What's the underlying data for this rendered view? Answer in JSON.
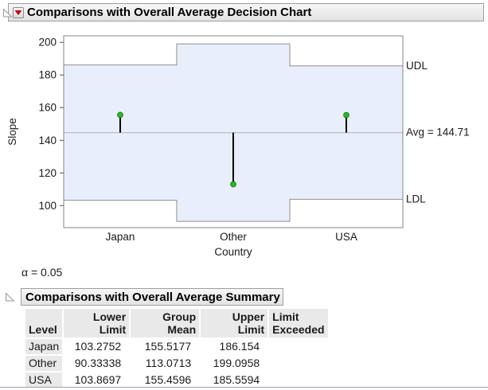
{
  "section1": {
    "title": "Comparisons with Overall Average Decision Chart",
    "alpha": "α = 0.05"
  },
  "chart_data": {
    "type": "anom-decision-chart",
    "title": "Comparisons with Overall Average Decision Chart",
    "xlabel": "Country",
    "ylabel": "Slope",
    "ylim": [
      86.5,
      204
    ],
    "yticks": [
      100,
      120,
      140,
      160,
      180,
      200
    ],
    "categories": [
      "Japan",
      "Other",
      "USA"
    ],
    "avg": 144.71,
    "avg_label": "Avg = 144.71",
    "udl_label": "UDL",
    "ldl_label": "LDL",
    "legend_position": "right",
    "grid": false,
    "groups": [
      {
        "level": "Japan",
        "lower": 103.2752,
        "mean": 155.5177,
        "upper": 186.154
      },
      {
        "level": "Other",
        "lower": 90.33338,
        "mean": 113.0713,
        "upper": 199.0958
      },
      {
        "level": "USA",
        "lower": 103.8697,
        "mean": 155.4596,
        "upper": 185.5594
      }
    ],
    "colors": {
      "band_fill": "#e9eefb",
      "band_border": "#8e8e8e",
      "frame": "#848484",
      "avg_line": "#b6bdc9",
      "needle": "#000000",
      "point_fill": "#2eb42e",
      "point_stroke": "#128a12",
      "menu_icon_red": "#c40000"
    }
  },
  "section2": {
    "title": "Comparisons with Overall Average Summary",
    "table": {
      "columns": [
        "Level",
        "Lower Limit",
        "Group Mean",
        "Upper Limit",
        "Limit Exceeded"
      ],
      "rows": [
        [
          "Japan",
          "103.2752",
          "155.5177",
          "186.154",
          ""
        ],
        [
          "Other",
          "90.33338",
          "113.0713",
          "199.0958",
          ""
        ],
        [
          "USA",
          "103.8697",
          "155.4596",
          "185.5594",
          ""
        ]
      ]
    }
  }
}
